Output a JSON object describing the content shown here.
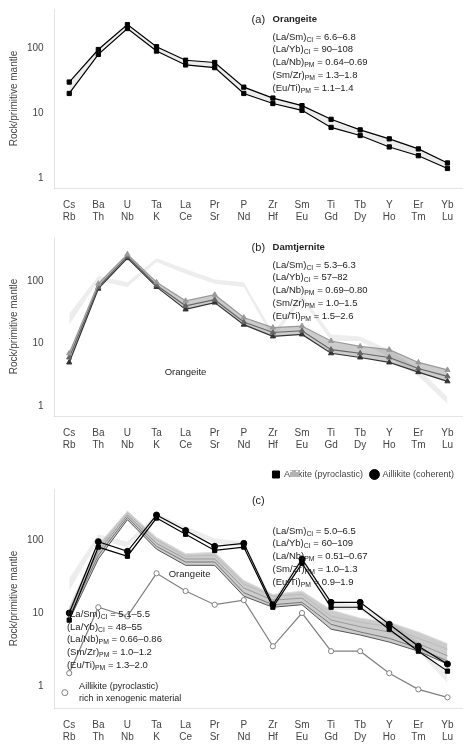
{
  "chart_data": [
    {
      "type": "line",
      "categories": [
        [
          "Cs",
          "Rb"
        ],
        [
          "Ba",
          "Th"
        ],
        [
          "U",
          "Nb"
        ],
        [
          "Ta",
          "K"
        ],
        [
          "La",
          "Ce"
        ],
        [
          "Pr",
          "Sr"
        ],
        [
          "P",
          "Nd"
        ],
        [
          "Zr",
          "Hf"
        ],
        [
          "Sm",
          "Eu"
        ],
        [
          "Ti",
          "Gd"
        ],
        [
          "Tb",
          "Dy"
        ],
        [
          "Y",
          "Ho"
        ],
        [
          "Er",
          "Tm"
        ],
        [
          "Yb",
          "Lu"
        ]
      ],
      "ylabel": "Rock/primitive mantle",
      "log": "y",
      "ylim": [
        0.7,
        400
      ],
      "yticks": [
        1,
        10,
        100
      ],
      "grid": false,
      "annotations": [
        "(a)",
        "Orangeite",
        "(La/Sm)CI = 6.6–6.8\n(La/Yb)CI = 90–108\n(La/Nb)PM = 0.64–0.69\n(Sm/Zr)PM = 1.3–1.8\n(Eu/Ti)PM = 1.1–1.4"
      ],
      "series": [
        {
          "type": "band",
          "color": "lightgray",
          "values": [
            [
              20,
              30
            ],
            [
              80,
              95
            ],
            [
              200,
              230
            ],
            [
              90,
              105
            ],
            [
              55,
              65
            ],
            [
              50,
              60
            ],
            [
              20,
              25
            ],
            [
              14,
              17
            ],
            [
              11,
              13
            ],
            [
              6,
              8
            ],
            [
              4.5,
              5.5
            ],
            [
              3,
              4
            ],
            [
              2.2,
              2.8
            ],
            [
              1.4,
              1.7
            ]
          ]
        },
        {
          "type": "line",
          "color": "black",
          "marker": "square",
          "line_style": "solid",
          "values": [
            20,
            80,
            200,
            90,
            55,
            50,
            20,
            14,
            11,
            6,
            4.5,
            3,
            2.2,
            1.4
          ]
        },
        {
          "type": "line",
          "color": "black",
          "marker": "square",
          "line_style": "solid",
          "values": [
            30,
            95,
            230,
            105,
            65,
            60,
            25,
            17,
            13,
            8,
            5.5,
            4,
            2.8,
            1.7
          ]
        }
      ]
    },
    {
      "type": "line",
      "categories": [
        [
          "Cs",
          "Rb"
        ],
        [
          "Ba",
          "Th"
        ],
        [
          "U",
          "Nb"
        ],
        [
          "Ta",
          "K"
        ],
        [
          "La",
          "Ce"
        ],
        [
          "Pr",
          "Sr"
        ],
        [
          "P",
          "Nd"
        ],
        [
          "Zr",
          "Hf"
        ],
        [
          "Sm",
          "Eu"
        ],
        [
          "Ti",
          "Gd"
        ],
        [
          "Tb",
          "Dy"
        ],
        [
          "Y",
          "Ho"
        ],
        [
          "Er",
          "Tm"
        ],
        [
          "Yb",
          "Lu"
        ]
      ],
      "ylabel": "Rock/primitive mantle",
      "log": "y",
      "ylim": [
        0.7,
        500
      ],
      "yticks": [
        1,
        10,
        100
      ],
      "grid": false,
      "annotations": [
        "(b)",
        "Damtjernite",
        "(La/Sm)CI = 5.3–6.3\n(La/Yb)CI = 57–82\n(La/Nb)PM = 0.69–0.80\n(Sm/Zr)PM = 1.0–1.5\n(Eu/Ti)PM = 1.5–2.6",
        "Orangeite"
      ],
      "series": [
        {
          "type": "band",
          "color": "lightgray",
          "values": [
            [
              20,
              30
            ],
            [
              100,
              120
            ],
            [
              80,
              95
            ],
            [
              200,
              230
            ],
            [
              130,
              155
            ],
            [
              90,
              105
            ],
            [
              80,
              95
            ],
            [
              12,
              15
            ],
            [
              50,
              60
            ],
            [
              11,
              14
            ],
            [
              11,
              13
            ],
            [
              6,
              8
            ],
            [
              3.0,
              4.0
            ],
            [
              1.1,
              1.4
            ]
          ]
        },
        {
          "type": "band",
          "color": "gray",
          "values": [
            [
              5,
              7
            ],
            [
              75,
              90
            ],
            [
              230,
              265
            ],
            [
              80,
              95
            ],
            [
              35,
              48
            ],
            [
              45,
              60
            ],
            [
              20,
              26
            ],
            [
              13,
              18
            ],
            [
              14,
              19
            ],
            [
              7,
              11
            ],
            [
              6,
              9
            ],
            [
              5,
              8
            ],
            [
              3.5,
              5
            ],
            [
              2.5,
              3.8
            ]
          ]
        },
        {
          "type": "line",
          "color": "#333333",
          "marker": "triangle",
          "line_style": "solid",
          "values": [
            5,
            75,
            230,
            80,
            35,
            45,
            20,
            13,
            14,
            7,
            6,
            5,
            3.5,
            2.5
          ]
        },
        {
          "type": "line",
          "color": "#666666",
          "marker": "triangle",
          "line_style": "solid",
          "values": [
            6,
            80,
            245,
            85,
            40,
            50,
            22,
            15,
            16,
            8,
            7,
            6,
            4,
            3.0
          ]
        },
        {
          "type": "line",
          "color": "#999999",
          "marker": "triangle",
          "line_style": "solid",
          "values": [
            7,
            90,
            265,
            95,
            48,
            60,
            26,
            18,
            19,
            11,
            9,
            8,
            5,
            3.8
          ]
        }
      ]
    },
    {
      "type": "line",
      "categories": [
        [
          "Cs",
          "Rb"
        ],
        [
          "Ba",
          "Th"
        ],
        [
          "U",
          "Nb"
        ],
        [
          "Ta",
          "K"
        ],
        [
          "La",
          "Ce"
        ],
        [
          "Pr",
          "Sr"
        ],
        [
          "P",
          "Nd"
        ],
        [
          "Zr",
          "Hf"
        ],
        [
          "Sm",
          "Eu"
        ],
        [
          "Ti",
          "Gd"
        ],
        [
          "Tb",
          "Dy"
        ],
        [
          "Y",
          "Ho"
        ],
        [
          "Er",
          "Tm"
        ],
        [
          "Yb",
          "Lu"
        ]
      ],
      "ylabel": "Rock/primitive mantle",
      "log": "y",
      "ylim": [
        0.5,
        500
      ],
      "yticks": [
        1,
        10,
        100
      ],
      "grid": false,
      "legend": "upper right",
      "annotations": [
        "(c)",
        "(La/Sm)CI = 5.0–6.5\n(La/Yb)CI = 60–109\n(La/Nb)PM = 0.51–0.67\n(Sm/Zr)PM = 1.0–1.3\n(Eu/Ti)PM = 0.9–1.9",
        "Orangeite",
        "(La/Sm)CI = 5.1–5.5\n(La/Yb)CI = 48–55\n(La/Nb)PM = 0.66–0.86\n(Sm/Zr)PM = 1.0–1.2\n(Eu/Ti)PM = 1.3–2.0",
        "Aillikite (pyroclastic)\nrich in xenogenic material"
      ],
      "series": [
        {
          "type": "band",
          "color": "lightgray",
          "values": [
            [
              20,
              30
            ],
            [
              100,
              120
            ],
            [
              80,
              95
            ],
            [
              200,
              230
            ],
            [
              130,
              155
            ],
            [
              90,
              105
            ],
            [
              80,
              95
            ],
            [
              12,
              15
            ],
            [
              50,
              60
            ],
            [
              11,
              14
            ],
            [
              11,
              13
            ],
            [
              6,
              8
            ],
            [
              3.0,
              4.0
            ],
            [
              1.1,
              1.4
            ]
          ]
        },
        {
          "type": "band",
          "color": "gray",
          "values": [
            [
              8,
              12
            ],
            [
              55,
              86
            ],
            [
              190,
              250
            ],
            [
              75,
              108
            ],
            [
              45,
              65
            ],
            [
              45,
              68
            ],
            [
              17,
              28
            ],
            [
              12,
              18
            ],
            [
              13,
              20
            ],
            [
              6,
              11
            ],
            [
              5,
              8.5
            ],
            [
              4,
              7.5
            ],
            [
              3,
              5.5
            ],
            [
              2.0,
              3.8
            ]
          ]
        },
        {
          "type": "line",
          "color": "#555555",
          "marker": "none",
          "line_style": "solid",
          "values": [
            8,
            55,
            190,
            75,
            45,
            45,
            17,
            12,
            13,
            6,
            5,
            4,
            3,
            2.0
          ]
        },
        {
          "type": "line",
          "color": "#777777",
          "marker": "none",
          "line_style": "solid",
          "values": [
            9,
            62,
            205,
            82,
            50,
            50,
            19,
            13,
            14,
            7,
            5.5,
            4.5,
            3.3,
            2.2
          ]
        },
        {
          "type": "line",
          "color": "#999999",
          "marker": "none",
          "line_style": "solid",
          "values": [
            10,
            70,
            220,
            90,
            55,
            55,
            22,
            15,
            16,
            8,
            6.5,
            5.5,
            3.8,
            2.6
          ]
        },
        {
          "type": "line",
          "color": "#bbbbbb",
          "marker": "none",
          "line_style": "solid",
          "values": [
            11,
            78,
            235,
            100,
            60,
            62,
            25,
            17,
            18,
            9,
            7.5,
            6.5,
            4.5,
            3.2
          ]
        },
        {
          "type": "line",
          "color": "#dddddd",
          "marker": "none",
          "line_style": "solid",
          "values": [
            12,
            86,
            250,
            108,
            65,
            68,
            28,
            18,
            20,
            11,
            8.5,
            7.5,
            5.5,
            3.8
          ]
        },
        {
          "type": "line",
          "color": "gray",
          "marker": "circle_open",
          "line_style": "solid",
          "values": [
            1.5,
            12,
            9,
            35,
            20,
            13,
            15,
            3.5,
            10,
            3.0,
            3.0,
            1.5,
            0.9,
            0.7
          ]
        },
        {
          "type": "line",
          "name": "Aillikite (coherent)",
          "color": "black",
          "marker": "circle",
          "line_style": "solid",
          "values": [
            10,
            95,
            70,
            220,
            135,
            82,
            90,
            13,
            55,
            14,
            14,
            7,
            3.5,
            2.0
          ]
        },
        {
          "type": "line",
          "name": "Aillikite (pyroclastic)",
          "color": "black",
          "marker": "square",
          "line_style": "solid",
          "values": [
            8,
            80,
            60,
            200,
            120,
            72,
            80,
            12,
            48,
            12,
            12,
            6,
            3.0,
            1.6
          ]
        }
      ]
    }
  ]
}
